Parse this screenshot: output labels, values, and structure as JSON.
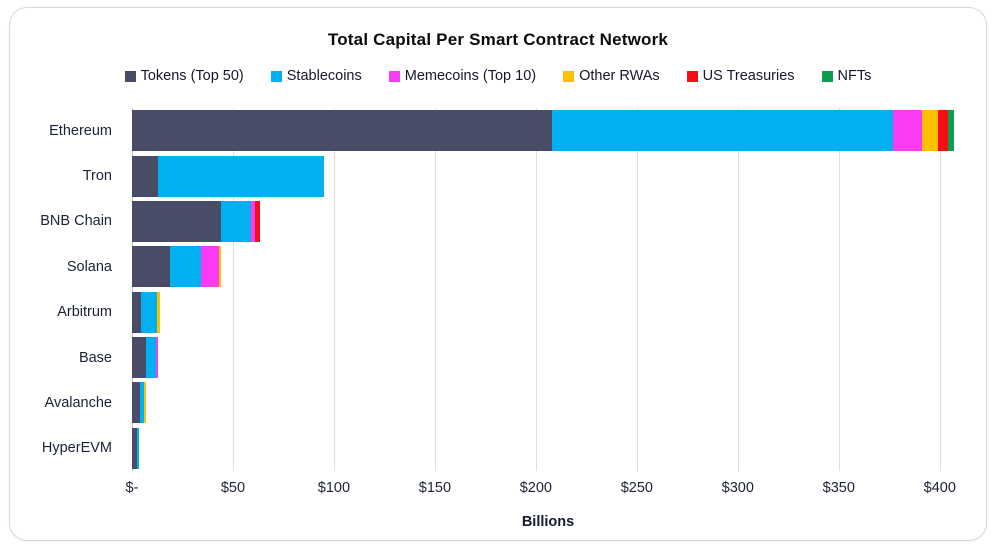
{
  "card": {
    "title": "Total Capital Per Smart Contract Network"
  },
  "legend": {
    "items": [
      {
        "label": "Tokens (Top 50)",
        "color": "#484c66"
      },
      {
        "label": "Stablecoins",
        "color": "#00b0f0"
      },
      {
        "label": "Memecoins (Top 10)",
        "color": "#fb3bf4"
      },
      {
        "label": "Other RWAs",
        "color": "#ffc000"
      },
      {
        "label": "US Treasuries",
        "color": "#f50f14"
      },
      {
        "label": "NFTs",
        "color": "#0c9e4e"
      }
    ]
  },
  "axis": {
    "tick_labels": [
      "$-",
      "$50",
      "$100",
      "$150",
      "$200",
      "$250",
      "$300",
      "$350",
      "$400"
    ],
    "xlabel": "Billions"
  },
  "chart_data": {
    "type": "bar",
    "orientation": "horizontal",
    "stacked": true,
    "title": "Total Capital Per Smart Contract Network",
    "xlabel": "Billions",
    "units": "USD billions",
    "grid": "vertical",
    "legend_position": "top",
    "xlim": [
      0,
      412
    ],
    "xticks": [
      0,
      50,
      100,
      150,
      200,
      250,
      300,
      350,
      400
    ],
    "categories": [
      "Ethereum",
      "Tron",
      "BNB Chain",
      "Solana",
      "Arbitrum",
      "Base",
      "Avalanche",
      "HyperEVM"
    ],
    "series": [
      {
        "name": "Tokens (Top 50)",
        "color": "#484c66",
        "values": [
          208,
          13,
          44,
          19,
          4.5,
          7,
          4,
          2.5
        ]
      },
      {
        "name": "Stablecoins",
        "color": "#00b0f0",
        "values": [
          169,
          82,
          15,
          15,
          8,
          5,
          2,
          1
        ]
      },
      {
        "name": "Memecoins (Top 10)",
        "color": "#fb3bf4",
        "values": [
          14,
          0,
          2,
          9,
          0,
          0.7,
          0,
          0
        ]
      },
      {
        "name": "Other RWAs",
        "color": "#ffc000",
        "values": [
          8,
          0,
          0,
          1,
          1.5,
          0,
          0.8,
          0
        ]
      },
      {
        "name": "US Treasuries",
        "color": "#f50f14",
        "values": [
          5,
          0,
          2.5,
          0,
          0,
          0,
          0,
          0
        ]
      },
      {
        "name": "NFTs",
        "color": "#0c9e4e",
        "values": [
          3,
          0,
          0,
          0,
          0,
          0,
          0,
          0
        ]
      }
    ],
    "totals": [
      407,
      95,
      63.5,
      44,
      14,
      12.7,
      6.8,
      3.5
    ]
  }
}
